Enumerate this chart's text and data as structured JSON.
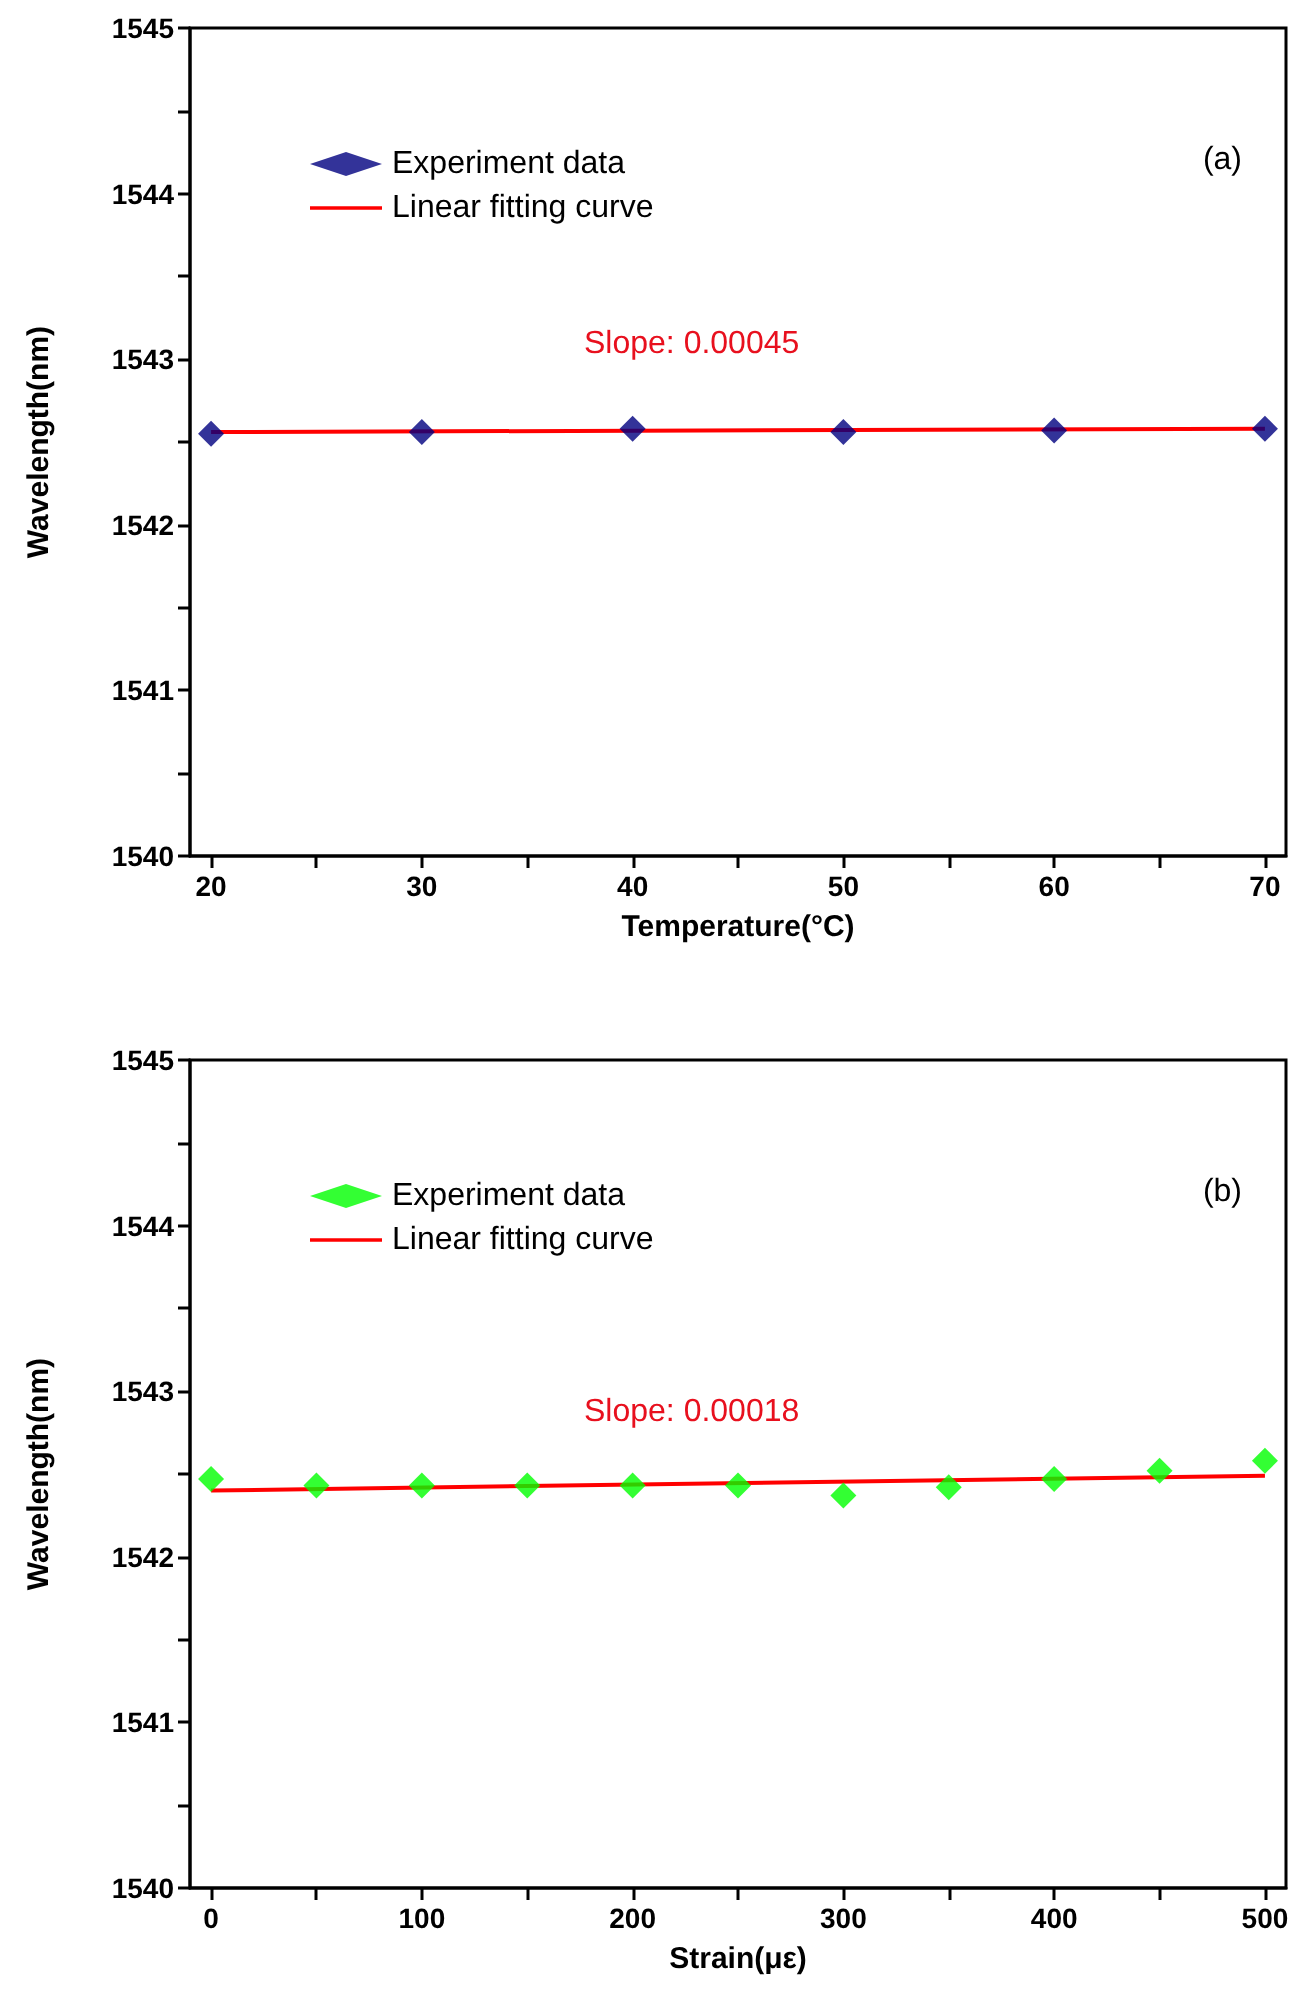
{
  "chart_data": [
    {
      "type": "scatter",
      "xlabel": "Temperature(°C)",
      "ylabel": "Wavelength(nm)",
      "legend": "top left",
      "marker": "diamond",
      "grid": false,
      "xlim": [
        19,
        71
      ],
      "xticks": [
        20,
        {
          "value": 25,
          "label": null
        },
        30,
        {
          "value": 35,
          "label": null
        },
        40,
        {
          "value": 45,
          "label": null
        },
        50,
        {
          "value": 55,
          "label": null
        },
        60,
        {
          "value": 65,
          "label": null
        },
        70
      ],
      "ylim": [
        1540,
        1545
      ],
      "yticks": [
        1540,
        {
          "value": 1540.5,
          "label": null
        },
        1541,
        {
          "value": 1541.5,
          "label": null
        },
        1542,
        {
          "value": 1542.5,
          "label": null
        },
        1543,
        {
          "value": 1543.5,
          "label": null
        },
        1544,
        {
          "value": 1544.5,
          "label": null
        },
        1545
      ],
      "x": [
        20,
        30,
        40,
        50,
        60,
        70
      ],
      "series": [
        {
          "name": "Experiment data",
          "color": "#000080",
          "values": [
            1542.55,
            1542.56,
            1542.58,
            1542.56,
            1542.57,
            1542.58
          ]
        },
        {
          "name": "Linear fitting curve",
          "type": "line",
          "marker": "none",
          "color": "#ff0000",
          "x": [
            20,
            70
          ],
          "values": [
            1542.56,
            1542.58
          ]
        }
      ],
      "annotations": [
        "Slope: 0.00045",
        "(a)"
      ]
    },
    {
      "type": "scatter",
      "xlabel": "Strain(με)",
      "ylabel": "Wavelength(nm)",
      "legend": "top left",
      "marker": "diamond",
      "grid": false,
      "xlim": [
        -10,
        510
      ],
      "xticks": [
        0,
        {
          "value": 50,
          "label": null
        },
        100,
        {
          "value": 150,
          "label": null
        },
        200,
        {
          "value": 250,
          "label": null
        },
        300,
        {
          "value": 350,
          "label": null
        },
        400,
        {
          "value": 450,
          "label": null
        },
        500
      ],
      "ylim": [
        1540,
        1545
      ],
      "yticks": [
        1540,
        {
          "value": 1540.5,
          "label": null
        },
        1541,
        {
          "value": 1541.5,
          "label": null
        },
        1542,
        {
          "value": 1542.5,
          "label": null
        },
        1543,
        {
          "value": 1543.5,
          "label": null
        },
        1544,
        {
          "value": 1544.5,
          "label": null
        },
        1545
      ],
      "x": [
        0,
        50,
        100,
        150,
        200,
        250,
        300,
        350,
        400,
        450,
        500
      ],
      "series": [
        {
          "name": "Experiment data",
          "color": "#00ff00",
          "values": [
            1542.47,
            1542.43,
            1542.43,
            1542.43,
            1542.43,
            1542.43,
            1542.37,
            1542.42,
            1542.47,
            1542.52,
            1542.58
          ]
        },
        {
          "name": "Linear fitting curve",
          "type": "line",
          "marker": "none",
          "color": "#ff0000",
          "x": [
            0,
            500
          ],
          "values": [
            1542.4,
            1542.49
          ]
        }
      ],
      "annotations": [
        "Slope: 0.00018",
        "(b)"
      ]
    }
  ]
}
